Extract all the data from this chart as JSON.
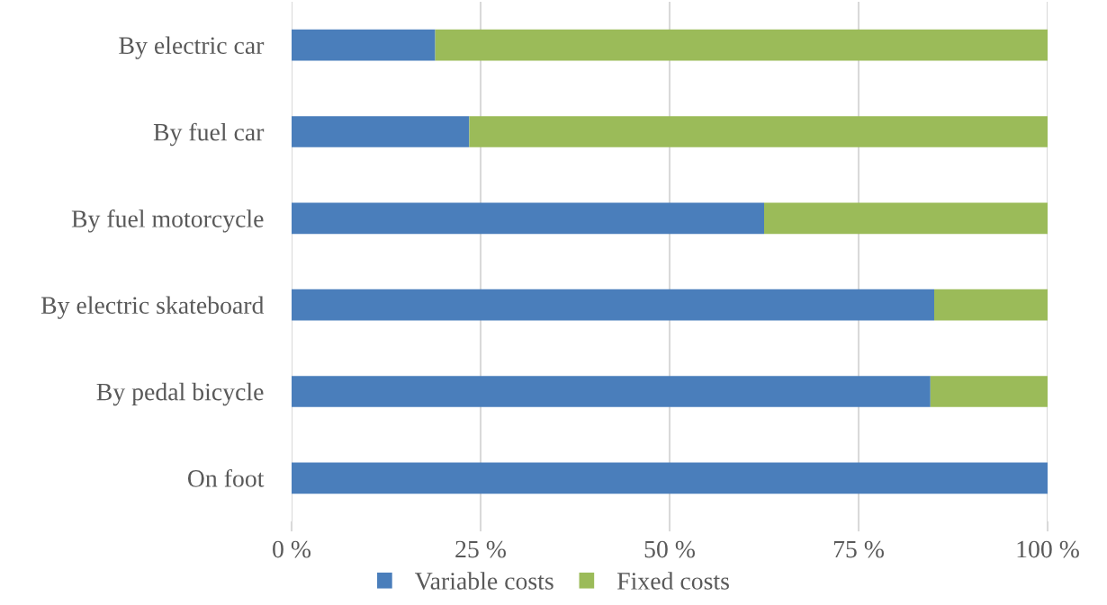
{
  "chart_data": {
    "type": "bar",
    "orientation": "horizontal",
    "stacked": true,
    "categories": [
      "By electric car",
      "By fuel car",
      "By fuel motorcycle",
      "By electric skateboard",
      "By pedal bicycle",
      "On foot"
    ],
    "series": [
      {
        "name": "Variable costs",
        "color": "#4a7ebb",
        "values": [
          19,
          23.5,
          62.5,
          85,
          84.5,
          100
        ]
      },
      {
        "name": "Fixed costs",
        "color": "#9bbb59",
        "values": [
          81,
          76.5,
          37.5,
          15,
          15.5,
          null
        ]
      }
    ],
    "xlim": [
      0,
      100
    ],
    "xticks": [
      {
        "value": 0,
        "label": "0 %"
      },
      {
        "value": 25,
        "label": "25 %"
      },
      {
        "value": 50,
        "label": "50 %"
      },
      {
        "value": 75,
        "label": "75 %"
      },
      {
        "value": 100,
        "label": "100 %"
      }
    ],
    "grid": "x",
    "legend": "bottom"
  }
}
